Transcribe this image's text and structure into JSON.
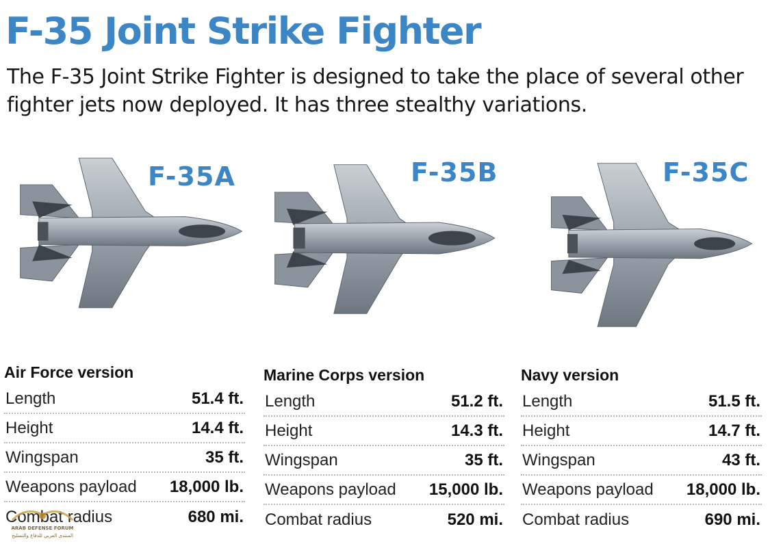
{
  "header": {
    "title": "F-35 Joint Strike Fighter",
    "intro": "The F-35 Joint Strike Fighter is designed to take the place of several other fighter jets now deployed. It has three stealthy variations."
  },
  "colors": {
    "accent": "#3d86c6",
    "jet_body": "#9aa3ab",
    "jet_dark": "#3c434a"
  },
  "variants": [
    {
      "name": "F-35A",
      "version": "Air Force version",
      "specs": [
        {
          "label": "Length",
          "value": "51.4 ft."
        },
        {
          "label": "Height",
          "value": "14.4 ft."
        },
        {
          "label": "Wingspan",
          "value": "35 ft."
        },
        {
          "label": "Weapons payload",
          "value": "18,000 lb."
        },
        {
          "label": "Combat radius",
          "value": "680 mi."
        }
      ]
    },
    {
      "name": "F-35B",
      "version": "Marine Corps version",
      "specs": [
        {
          "label": "Length",
          "value": "51.2 ft."
        },
        {
          "label": "Height",
          "value": "14.3 ft."
        },
        {
          "label": "Wingspan",
          "value": "35 ft."
        },
        {
          "label": "Weapons payload",
          "value": "15,000 lb."
        },
        {
          "label": "Combat radius",
          "value": "520 mi."
        }
      ]
    },
    {
      "name": "F-35C",
      "version": "Navy version",
      "specs": [
        {
          "label": "Length",
          "value": "51.5 ft."
        },
        {
          "label": "Height",
          "value": "14.7 ft."
        },
        {
          "label": "Wingspan",
          "value": "43 ft."
        },
        {
          "label": "Weapons payload",
          "value": "18,000 lb."
        },
        {
          "label": "Combat radius",
          "value": "690 mi."
        }
      ]
    }
  ],
  "watermark": {
    "line1": "ARAB DEFENSE FORUM",
    "line2": "المنتدى العربي للدفاع والتسليح"
  }
}
